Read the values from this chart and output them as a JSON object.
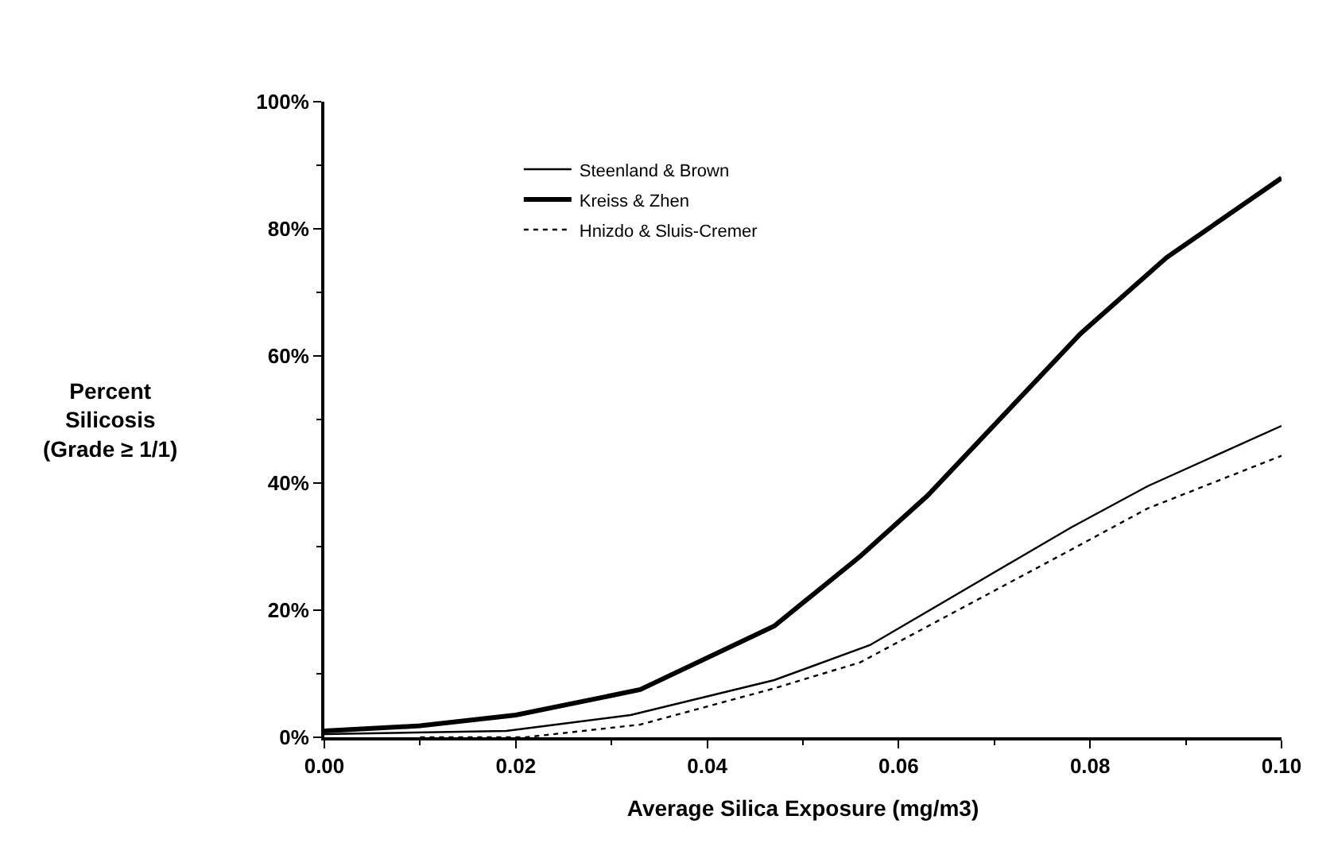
{
  "chart_data": {
    "type": "line",
    "xlabel": "Average Silica Exposure (mg/m3)",
    "ylabel": "Percent\nSilicosis\n(Grade ≥ 1/1)",
    "xlim": [
      0,
      0.1
    ],
    "xticks": [
      {
        "value": 0,
        "label": "0.00"
      },
      {
        "value": 0.02,
        "label": "0.02"
      },
      {
        "value": 0.04,
        "label": "0.04"
      },
      {
        "value": 0.06,
        "label": "0.06"
      },
      {
        "value": 0.08,
        "label": "0.08"
      },
      {
        "value": 0.1,
        "label": "0.10"
      }
    ],
    "ylim": [
      0,
      100
    ],
    "yticks": [
      {
        "value": 0,
        "label": "0%"
      },
      {
        "value": 20,
        "label": "20%"
      },
      {
        "value": 40,
        "label": "40%"
      },
      {
        "value": 60,
        "label": "60%"
      },
      {
        "value": 80,
        "label": "80%"
      },
      {
        "value": 100,
        "label": "100%"
      }
    ],
    "legend": "top left",
    "marker": "none",
    "series": [
      {
        "name": "Steenland & Brown",
        "color": "#000000",
        "line_style": "solid",
        "x": [
          0,
          0.019,
          0.032,
          0.047,
          0.057,
          0.078,
          0.086,
          0.1
        ],
        "values": [
          0.5,
          1,
          3.5,
          9,
          14.5,
          33,
          39.5,
          49
        ]
      },
      {
        "name": "Kreiss & Zhen",
        "color": "#000000",
        "line_style": "solid",
        "x": [
          0,
          0.01,
          0.02,
          0.033,
          0.047,
          0.056,
          0.063,
          0.079,
          0.088,
          0.1
        ],
        "values": [
          1,
          1.8,
          3.5,
          7.5,
          17.5,
          28.5,
          38,
          63.5,
          75.5,
          88
        ]
      },
      {
        "name": "Hnizdo & Sluis-Cremer",
        "color": "#000000",
        "line_style": "dotted",
        "x": [
          0.01,
          0.021,
          0.033,
          0.047,
          0.056,
          0.078,
          0.086,
          0.1
        ],
        "values": [
          0,
          0,
          2,
          7.7,
          11.8,
          29.5,
          36,
          44.3
        ]
      }
    ]
  }
}
